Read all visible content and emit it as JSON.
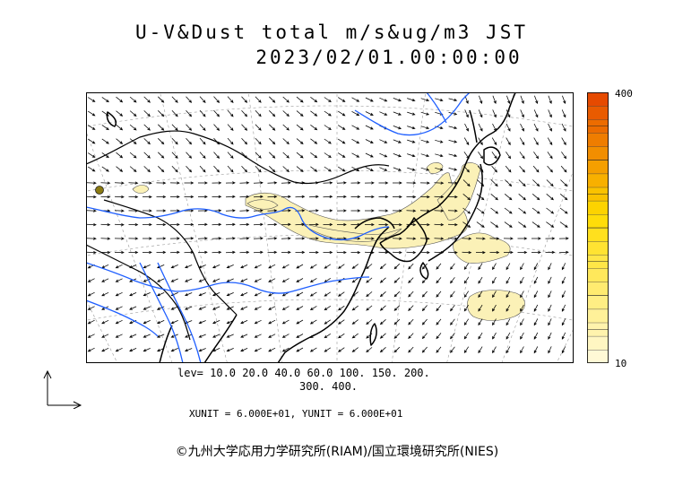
{
  "title": "U-V&Dust total m/s&ug/m3 JST",
  "datetime": "2023/02/01.00:00:00",
  "chart_data": {
    "type": "heatmap",
    "variable": "U-V&Dust total",
    "units": "m/s&ug/m3",
    "time": "2023/02/01.00:00:00 JST",
    "contour_levels": [
      10.0,
      20.0,
      40.0,
      60.0,
      100.0,
      150.0,
      200.0,
      300.0,
      400.0
    ],
    "levels_label_line1": "lev= 10.0 20.0 40.0 60.0 100. 150. 200.",
    "levels_label_line2": "300. 400.",
    "colorbar": {
      "min_label": "10",
      "max_label": "400",
      "low_color": "#fff9d6",
      "high_color": "#e64a00"
    },
    "vector_units": "XUNIT = 6.000E+01, YUNIT = 6.000E+01"
  },
  "colors": {
    "coast": "#000000",
    "river": "#1f5fff",
    "grid": "#999999",
    "dust_fill": "#fbf1b7",
    "arrow": "#000000"
  },
  "copyright": "©九州大学応用力学研究所(RIAM)/国立環境研究所(NIES)"
}
